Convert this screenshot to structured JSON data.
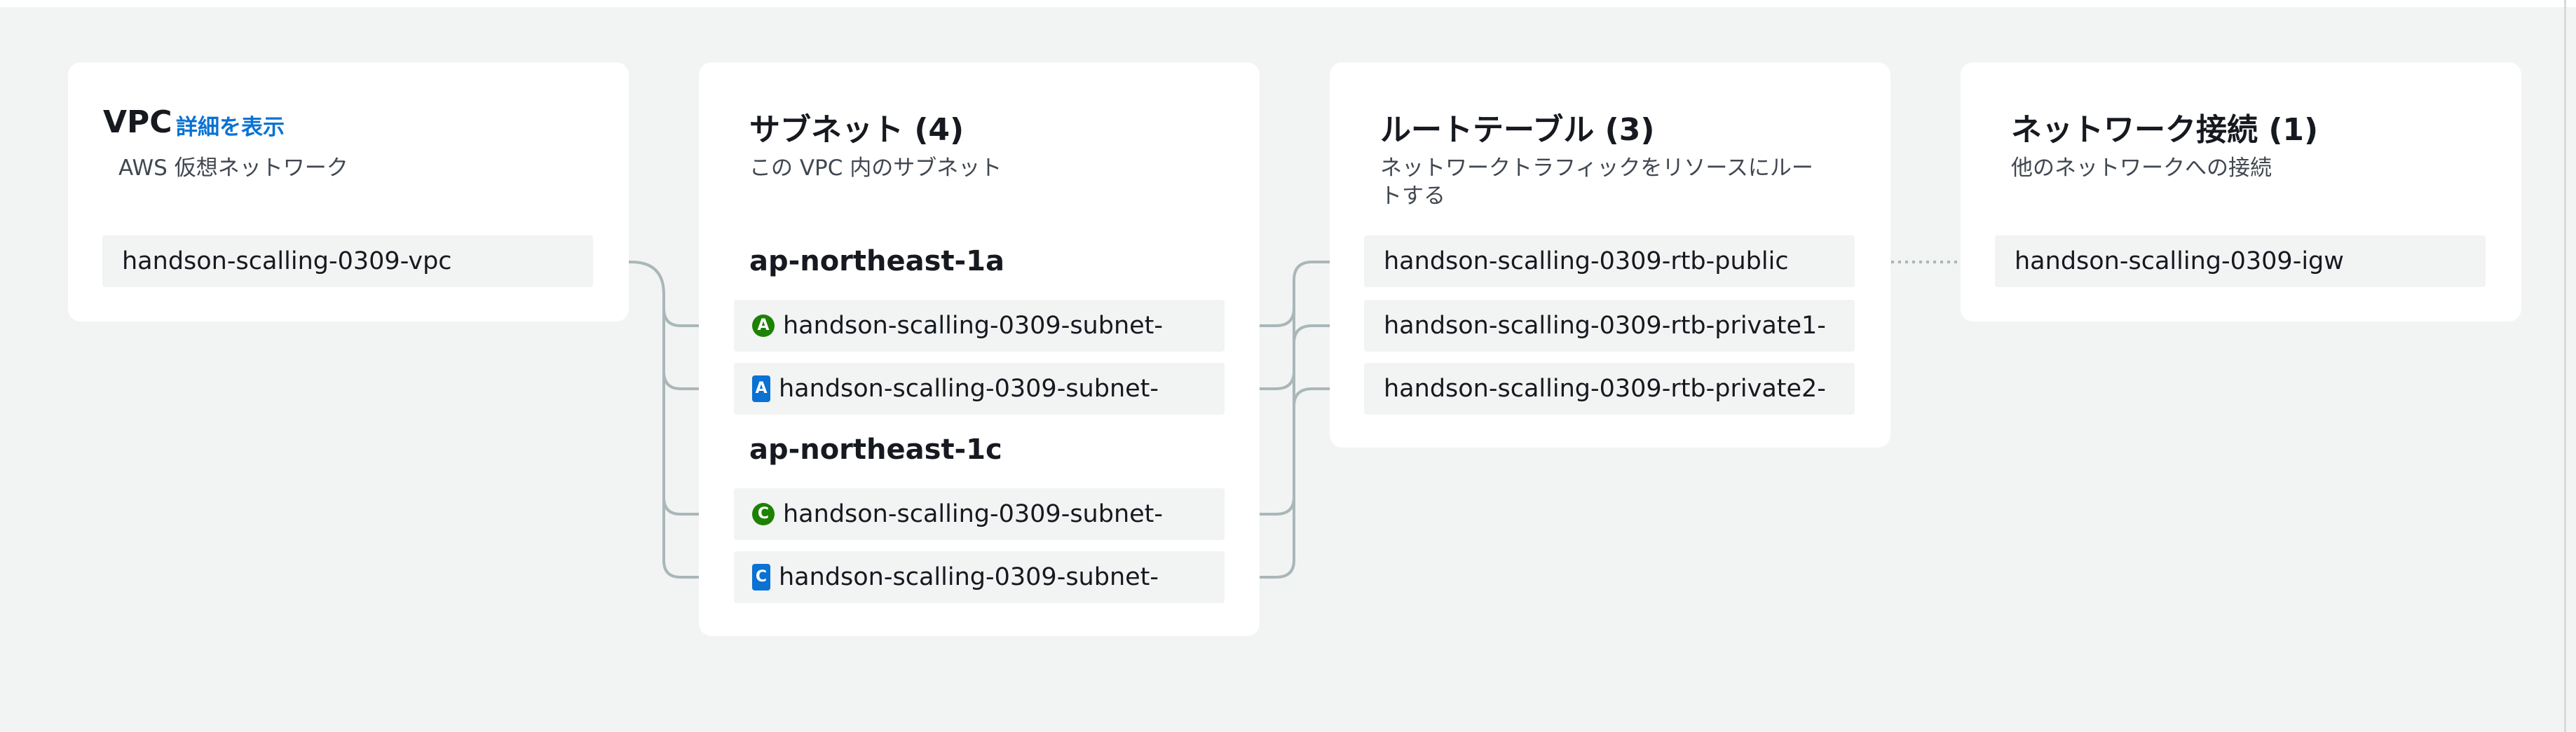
{
  "colors": {
    "public_subnet": "#1d8102",
    "private_subnet": "#0972d3",
    "link": "#0972d3",
    "connector": "#aab7b8"
  },
  "vpc": {
    "title": "VPC",
    "details_link": "詳細を表示",
    "description": "AWS 仮想ネットワーク",
    "item": "handson-scalling-0309-vpc"
  },
  "subnets": {
    "title": "サブネット (4)",
    "description": "この VPC 内のサブネット",
    "zones": [
      {
        "name": "ap-northeast-1a",
        "items": [
          {
            "icon_letter": "A",
            "icon_name": "public-subnet-icon",
            "label": "handson-scalling-0309-subnet-"
          },
          {
            "icon_letter": "A",
            "icon_name": "private-subnet-icon",
            "label": "handson-scalling-0309-subnet-"
          }
        ]
      },
      {
        "name": "ap-northeast-1c",
        "items": [
          {
            "icon_letter": "C",
            "icon_name": "public-subnet-icon",
            "label": "handson-scalling-0309-subnet-"
          },
          {
            "icon_letter": "C",
            "icon_name": "private-subnet-icon",
            "label": "handson-scalling-0309-subnet-"
          }
        ]
      }
    ]
  },
  "route_tables": {
    "title": "ルートテーブル (3)",
    "description": "ネットワークトラフィックをリソースにルートする",
    "items": [
      "handson-scalling-0309-rtb-public",
      "handson-scalling-0309-rtb-private1-",
      "handson-scalling-0309-rtb-private2-"
    ]
  },
  "network_connections": {
    "title": "ネットワーク接続 (1)",
    "description": "他のネットワークへの接続",
    "items": [
      "handson-scalling-0309-igw"
    ]
  }
}
